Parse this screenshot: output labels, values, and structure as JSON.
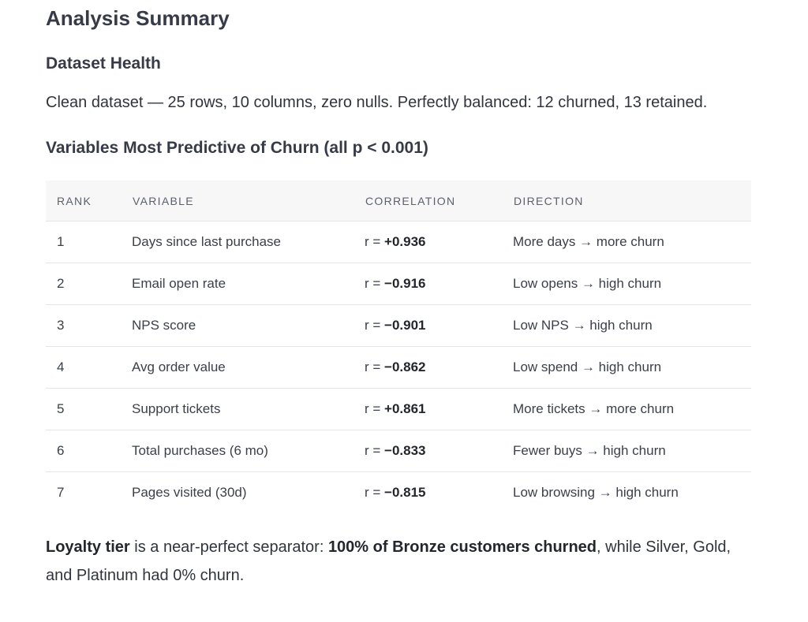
{
  "title": "Analysis Summary",
  "sections": [
    {
      "heading": "Dataset Health",
      "paragraph": [
        "Clean dataset — 25 rows, 10 columns, zero nulls. Perfectly balanced: 12 churned, 13 retained."
      ]
    },
    {
      "heading": "Variables Most Predictive of Churn (all p < 0.001)",
      "table": {
        "headers": [
          "RANK",
          "VARIABLE",
          "CORRELATION",
          "DIRECTION"
        ],
        "rows": [
          {
            "rank": "1",
            "variable": "Days since last purchase",
            "prefix": "r =",
            "value": "+0.936",
            "direction": "More days → more churn"
          },
          {
            "rank": "2",
            "variable": "Email open rate",
            "prefix": "r =",
            "value": "−0.916",
            "direction": "Low opens → high churn"
          },
          {
            "rank": "3",
            "variable": "NPS score",
            "prefix": "r =",
            "value": "−0.901",
            "direction": "Low NPS → high churn"
          },
          {
            "rank": "4",
            "variable": "Avg order value",
            "prefix": "r =",
            "value": "−0.862",
            "direction": "Low spend → high churn"
          },
          {
            "rank": "5",
            "variable": "Support tickets",
            "prefix": "r =",
            "value": "+0.861",
            "direction": "More tickets → more churn"
          },
          {
            "rank": "6",
            "variable": "Total purchases (6 mo)",
            "prefix": "r =",
            "value": "−0.833",
            "direction": "Fewer buys → high churn"
          },
          {
            "rank": "7",
            "variable": "Pages visited (30d)",
            "prefix": "r =",
            "value": "−0.815",
            "direction": "Low browsing → high churn"
          }
        ]
      },
      "paragraph": [
        "Loyalty tier",
        " is a near-perfect separator: ",
        "100% of Bronze customers churned",
        ", while Silver, Gold, and Platinum had 0% churn."
      ]
    }
  ]
}
